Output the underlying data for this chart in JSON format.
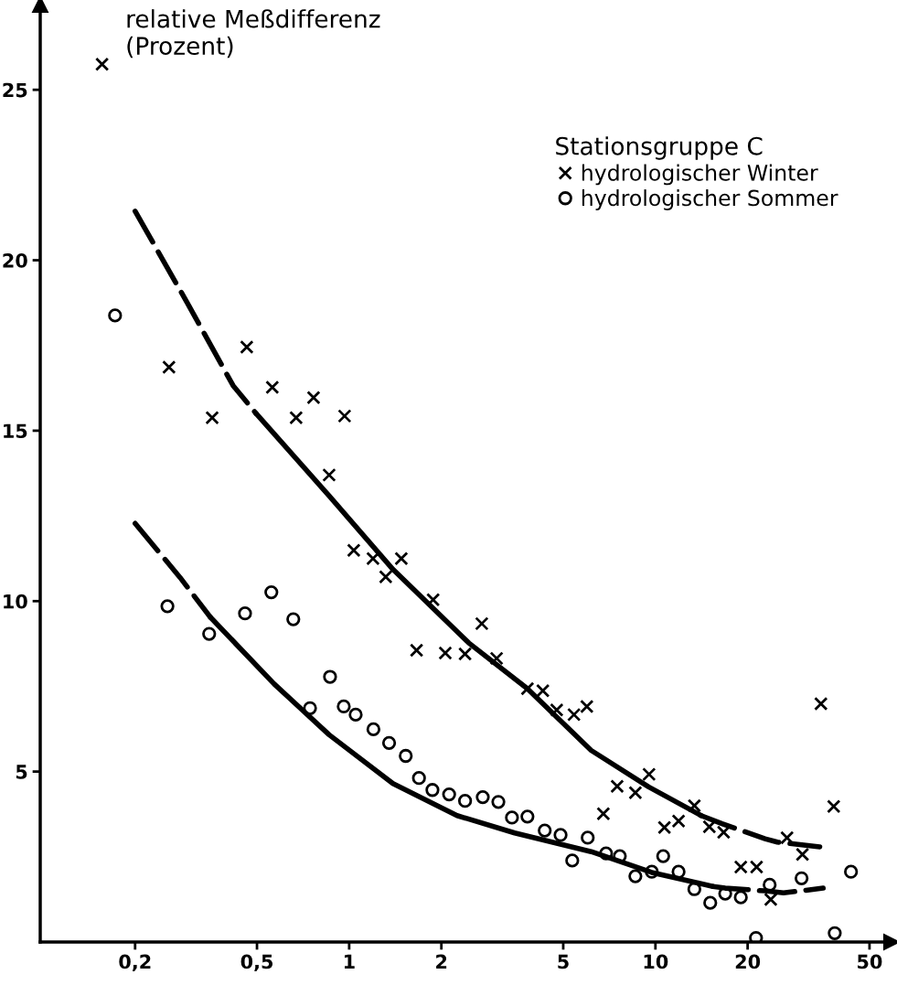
{
  "chart_data": {
    "type": "scatter",
    "ylabel": "relative Meßdifferenz\n(Prozent)",
    "legend_title": "Stationsgruppe C",
    "log": "x",
    "xlim": [
      0.098,
      59
    ],
    "ylim": [
      0,
      27.5
    ],
    "xticks": [
      {
        "value": 0.2,
        "label": "0,2"
      },
      {
        "value": 0.5,
        "label": "0,5"
      },
      1,
      2,
      5,
      10,
      20,
      50
    ],
    "yticks": [
      5,
      10,
      15,
      20,
      25
    ],
    "grid": false,
    "legend": "top right",
    "series": [
      {
        "name": "hydrologischer Winter",
        "color": "#000000",
        "marker": "cross",
        "x": [
          0.156,
          0.258,
          0.357,
          0.463,
          0.561,
          0.671,
          0.765,
          0.86,
          0.966,
          1.035,
          1.196,
          1.316,
          1.48,
          1.66,
          1.88,
          2.06,
          2.39,
          2.71,
          3.03,
          3.82,
          4.29,
          4.76,
          5.42,
          5.97,
          6.76,
          7.5,
          8.6,
          9.53,
          10.7,
          11.9,
          13.4,
          15.0,
          16.7,
          19.0,
          21.4,
          23.8,
          26.9,
          30.2,
          34.7,
          38.2
        ],
        "values": [
          25.75,
          16.86,
          15.38,
          17.45,
          16.27,
          15.38,
          15.97,
          13.7,
          15.43,
          11.49,
          11.25,
          10.71,
          11.25,
          8.56,
          10.04,
          8.48,
          8.45,
          9.34,
          8.32,
          7.43,
          7.37,
          6.81,
          6.67,
          6.91,
          3.76,
          4.57,
          4.38,
          4.92,
          3.36,
          3.55,
          4.0,
          3.38,
          3.22,
          2.2,
          2.2,
          1.25,
          3.06,
          2.57,
          6.99,
          3.98
        ]
      },
      {
        "name": "hydrologischer Sommer",
        "color": "#000000",
        "marker": "circle",
        "x": [
          0.172,
          0.255,
          0.349,
          0.457,
          0.557,
          0.657,
          0.745,
          0.866,
          0.96,
          1.05,
          1.2,
          1.35,
          1.53,
          1.69,
          1.87,
          2.12,
          2.39,
          2.73,
          3.07,
          3.4,
          3.82,
          4.35,
          4.9,
          5.35,
          6.01,
          6.9,
          7.65,
          8.6,
          9.73,
          10.6,
          11.9,
          13.4,
          15.1,
          16.9,
          19.0,
          21.3,
          23.6,
          30.0,
          38.5,
          43.5
        ],
        "values": [
          18.38,
          9.85,
          9.04,
          9.64,
          10.26,
          9.47,
          6.86,
          7.78,
          6.91,
          6.67,
          6.24,
          5.84,
          5.46,
          4.81,
          4.46,
          4.33,
          4.14,
          4.25,
          4.11,
          3.65,
          3.68,
          3.27,
          3.14,
          2.39,
          3.06,
          2.6,
          2.52,
          1.93,
          2.06,
          2.52,
          2.06,
          1.55,
          1.15,
          1.42,
          1.31,
          0.12,
          1.68,
          1.87,
          0.26,
          2.06
        ]
      },
      {
        "type": "line",
        "color": "#000000",
        "line_style": "dashed",
        "x": [
          0.2,
          0.296,
          0.418,
          0.496
        ],
        "values": [
          21.44,
          18.75,
          16.32,
          15.51
        ]
      },
      {
        "type": "line",
        "color": "#000000",
        "line_style": "solid",
        "x": [
          0.496,
          0.86,
          1.39,
          2.46,
          3.82,
          6.17,
          9.5,
          14.1
        ],
        "values": [
          15.51,
          13.09,
          10.93,
          8.77,
          7.43,
          5.62,
          4.55,
          3.71
        ]
      },
      {
        "type": "line",
        "color": "#000000",
        "line_style": "dashed",
        "x": [
          14.1,
          16.5,
          22.8,
          25,
          34.4
        ],
        "values": [
          3.71,
          3.47,
          3.03,
          2.93,
          2.79
        ]
      },
      {
        "type": "line",
        "color": "#000000",
        "line_style": "dashed",
        "x": [
          0.2,
          0.28,
          0.352
        ],
        "values": [
          12.28,
          10.7,
          9.53
        ]
      },
      {
        "type": "line",
        "color": "#000000",
        "line_style": "solid",
        "x": [
          0.352,
          0.569,
          0.86,
          1.39,
          2.25,
          3.47,
          6.17,
          9.73,
          15.4
        ],
        "values": [
          9.53,
          7.57,
          6.08,
          4.65,
          3.71,
          3.2,
          2.65,
          2.04,
          1.63
        ]
      },
      {
        "type": "line",
        "color": "#000000",
        "line_style": "dashed",
        "x": [
          15.4,
          16.9,
          22.8,
          26.2,
          35.3
        ],
        "values": [
          1.63,
          1.58,
          1.5,
          1.44,
          1.58
        ]
      }
    ]
  }
}
